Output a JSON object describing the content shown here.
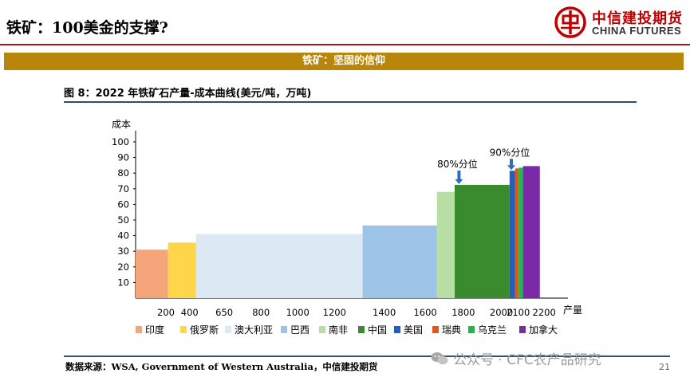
{
  "header": {
    "page_title": "铁矿：100美金的支撑?",
    "brand_cn": "中信建投期货",
    "brand_en": "CHINA FUTURES"
  },
  "section": {
    "title": "铁矿：坚固的信仰"
  },
  "figure": {
    "title": "图 8：2022 年铁矿石产量-成本曲线(美元/吨，万吨)"
  },
  "footer": {
    "source": "数据来源：WSA, Government of Western Australia，中信建投期货",
    "watermark": "公众号 · CFC农产品研究",
    "page_number": "21"
  },
  "colors": {
    "印度": "#f4a57a",
    "俄罗斯": "#ffd54a",
    "澳大利亚": "#dce9f5",
    "巴西": "#9dc3e6",
    "南非": "#b7dfa4",
    "中国": "#3a8a2e",
    "美国": "#1f5fbf",
    "瑞典": "#e0571c",
    "乌克兰": "#1fb84a",
    "加拿大": "#7a2aa6",
    "arrow": "#2e6fbd"
  },
  "chart_data": {
    "type": "bar",
    "xlabel": "产量",
    "ylabel": "成本",
    "ylim": [
      0,
      100
    ],
    "y_ticks": [
      10,
      20,
      30,
      40,
      50,
      60,
      70,
      80,
      90,
      100
    ],
    "x_ticks": [
      {
        "label": "200",
        "x": 0.07
      },
      {
        "label": "400",
        "x": 0.125
      },
      {
        "label": "650",
        "x": 0.205
      },
      {
        "label": "800",
        "x": 0.29
      },
      {
        "label": "1000",
        "x": 0.375
      },
      {
        "label": "1200",
        "x": 0.46
      },
      {
        "label": "1400",
        "x": 0.575
      },
      {
        "label": "1600",
        "x": 0.67
      },
      {
        "label": "1800",
        "x": 0.758
      },
      {
        "label": "2000",
        "x": 0.846
      },
      {
        "label": "2100",
        "x": 0.885
      },
      {
        "label": "2200",
        "x": 0.945
      }
    ],
    "segments": [
      {
        "name": "印度",
        "start": 0.0,
        "end": 0.075,
        "value": 31
      },
      {
        "name": "俄罗斯",
        "start": 0.075,
        "end": 0.14,
        "value": 35.5
      },
      {
        "name": "澳大利亚",
        "start": 0.14,
        "end": 0.525,
        "value": 41
      },
      {
        "name": "巴西",
        "start": 0.525,
        "end": 0.697,
        "value": 46.5
      },
      {
        "name": "南非",
        "start": 0.697,
        "end": 0.738,
        "value": 68
      },
      {
        "name": "中国",
        "start": 0.738,
        "end": 0.865,
        "value": 72.5
      },
      {
        "name": "美国",
        "start": 0.865,
        "end": 0.878,
        "value": 81.5
      },
      {
        "name": "瑞典",
        "start": 0.878,
        "end": 0.886,
        "value": 83
      },
      {
        "name": "乌克兰",
        "start": 0.886,
        "end": 0.896,
        "value": 83.5
      },
      {
        "name": "加拿大",
        "start": 0.896,
        "end": 0.935,
        "value": 84.5
      }
    ],
    "annotations": [
      {
        "text": "80%分位",
        "x": 0.748,
        "value": 72.5
      },
      {
        "text": "90%分位",
        "x": 0.869,
        "value": 81.5
      }
    ],
    "legend": [
      "印度",
      "俄罗斯",
      "澳大利亚",
      "巴西",
      "南非",
      "中国",
      "美国",
      "瑞典",
      "乌克兰",
      "加拿大"
    ]
  }
}
